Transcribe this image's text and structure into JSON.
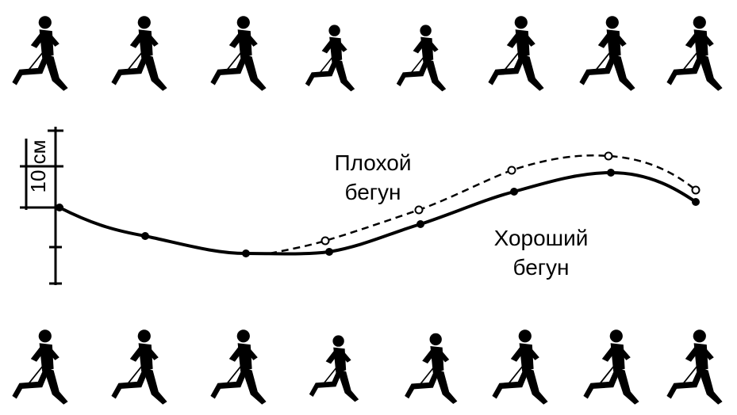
{
  "scale_label": "10 см",
  "bad_runner": {
    "lines": [
      "Плохой",
      "бегун"
    ]
  },
  "good_runner": {
    "lines": [
      "Хороший",
      "бегун"
    ]
  }
}
